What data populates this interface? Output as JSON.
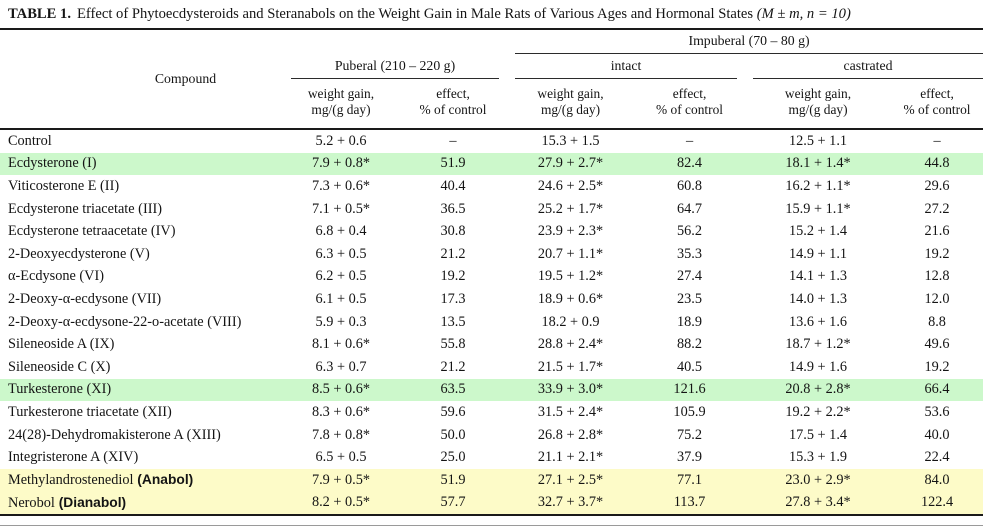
{
  "title": {
    "label": "TABLE 1.",
    "text": "Effect of Phytoecdysteroids and Steranabols on the Weight Gain in Male Rats of Various Ages and Hormonal States",
    "stats": "(M ± m, n = 10)"
  },
  "header": {
    "compound": "Compound",
    "puberal": "Puberal (210 – 220 g)",
    "impuberal": "Impuberal (70 – 80 g)",
    "intact": "intact",
    "castrated": "castrated",
    "weight_gain_line1": "weight gain,",
    "weight_gain_line2": "mg/(g day)",
    "effect_line1": "effect,",
    "effect_line2": "% of control"
  },
  "colors": {
    "green": "#ccf8cb",
    "yellow": "#fdfbc8"
  },
  "rows": [
    {
      "compound": "Control",
      "annotation": "",
      "highlight": "",
      "cells": [
        "5.2 + 0.6",
        "–",
        "15.3 + 1.5",
        "–",
        "12.5 + 1.1",
        "–"
      ]
    },
    {
      "compound": "Ecdysterone (I)",
      "annotation": "",
      "highlight": "green",
      "cells": [
        "7.9 + 0.8*",
        "51.9",
        "27.9 + 2.7*",
        "82.4",
        "18.1 + 1.4*",
        "44.8"
      ]
    },
    {
      "compound": "Viticosterone E (II)",
      "annotation": "",
      "highlight": "",
      "cells": [
        "7.3 + 0.6*",
        "40.4",
        "24.6 + 2.5*",
        "60.8",
        "16.2 + 1.1*",
        "29.6"
      ]
    },
    {
      "compound": "Ecdysterone triacetate (III)",
      "annotation": "",
      "highlight": "",
      "cells": [
        "7.1 + 0.5*",
        "36.5",
        "25.2 + 1.7*",
        "64.7",
        "15.9 + 1.1*",
        "27.2"
      ]
    },
    {
      "compound": "Ecdysterone tetraacetate (IV)",
      "annotation": "",
      "highlight": "",
      "cells": [
        "6.8 + 0.4",
        "30.8",
        "23.9 + 2.3*",
        "56.2",
        "15.2 + 1.4",
        "21.6"
      ]
    },
    {
      "compound": "2-Deoxyecdysterone (V)",
      "annotation": "",
      "highlight": "",
      "cells": [
        "6.3 + 0.5",
        "21.2",
        "20.7 + 1.1*",
        "35.3",
        "14.9 + 1.1",
        "19.2"
      ]
    },
    {
      "compound": "α-Ecdysone (VI)",
      "annotation": "",
      "highlight": "",
      "cells": [
        "6.2 + 0.5",
        "19.2",
        "19.5 + 1.2*",
        "27.4",
        "14.1 + 1.3",
        "12.8"
      ]
    },
    {
      "compound": "2-Deoxy-α-ecdysone (VII)",
      "annotation": "",
      "highlight": "",
      "cells": [
        "6.1 + 0.5",
        "17.3",
        "18.9 + 0.6*",
        "23.5",
        "14.0 + 1.3",
        "12.0"
      ]
    },
    {
      "compound": "2-Deoxy-α-ecdysone-22-o-acetate (VIII)",
      "annotation": "",
      "highlight": "",
      "cells": [
        "5.9 + 0.3",
        "13.5",
        "18.2 + 0.9",
        "18.9",
        "13.6 + 1.6",
        "8.8"
      ]
    },
    {
      "compound": "Sileneoside A (IX)",
      "annotation": "",
      "highlight": "",
      "cells": [
        "8.1 + 0.6*",
        "55.8",
        "28.8 + 2.4*",
        "88.2",
        "18.7 + 1.2*",
        "49.6"
      ]
    },
    {
      "compound": "Sileneoside C (X)",
      "annotation": "",
      "highlight": "",
      "cells": [
        "6.3 + 0.7",
        "21.2",
        "21.5 + 1.7*",
        "40.5",
        "14.9 + 1.6",
        "19.2"
      ]
    },
    {
      "compound": "Turkesterone (XI)",
      "annotation": "",
      "highlight": "green",
      "cells": [
        "8.5 + 0.6*",
        "63.5",
        "33.9 + 3.0*",
        "121.6",
        "20.8 + 2.8*",
        "66.4"
      ]
    },
    {
      "compound": "Turkesterone triacetate (XII)",
      "annotation": "",
      "highlight": "",
      "cells": [
        "8.3 + 0.6*",
        "59.6",
        "31.5 + 2.4*",
        "105.9",
        "19.2 + 2.2*",
        "53.6"
      ]
    },
    {
      "compound": "24(28)-Dehydromakisterone A (XIII)",
      "annotation": "",
      "highlight": "",
      "cells": [
        "7.8 + 0.8*",
        "50.0",
        "26.8 + 2.8*",
        "75.2",
        "17.5 + 1.4",
        "40.0"
      ]
    },
    {
      "compound": "Integristerone A (XIV)",
      "annotation": "",
      "highlight": "",
      "cells": [
        "6.5 + 0.5",
        "25.0",
        "21.1 + 2.1*",
        "37.9",
        "15.3 + 1.9",
        "22.4"
      ]
    },
    {
      "compound": "Methylandrostenediol",
      "annotation": "(Anabol)",
      "highlight": "yellow",
      "cells": [
        "7.9 + 0.5*",
        "51.9",
        "27.1 + 2.5*",
        "77.1",
        "23.0 + 2.9*",
        "84.0"
      ]
    },
    {
      "compound": "Nerobol",
      "annotation": "(Dianabol)",
      "highlight": "yellow",
      "cells": [
        "8.2 + 0.5*",
        "57.7",
        "32.7 + 3.7*",
        "113.7",
        "27.8 + 3.4*",
        "122.4"
      ]
    }
  ],
  "cell_names": [
    "puberal-weight-gain",
    "puberal-effect",
    "intact-weight-gain",
    "intact-effect",
    "castrated-weight-gain",
    "castrated-effect"
  ]
}
